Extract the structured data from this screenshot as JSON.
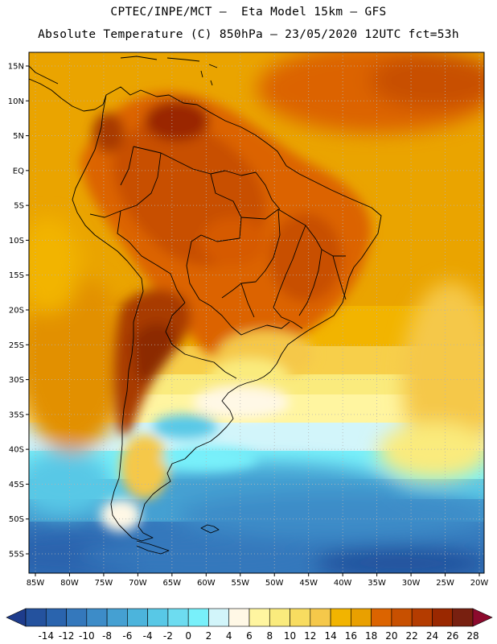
{
  "header": {
    "line1": "CPTEC/INPE/MCT –  Eta Model 15km – GFS",
    "line2": "Absolute Temperature (C) 850hPa – 23/05/2020 12UTC fct=53h"
  },
  "axes": {
    "lat_labels": [
      "15N",
      "10N",
      "5N",
      "EQ",
      "5S",
      "10S",
      "15S",
      "20S",
      "25S",
      "30S",
      "35S",
      "40S",
      "45S",
      "50S",
      "55S"
    ],
    "lon_labels": [
      "85W",
      "80W",
      "75W",
      "70W",
      "65W",
      "60W",
      "55W",
      "50W",
      "45W",
      "40W",
      "35W",
      "30W",
      "25W",
      "20W"
    ],
    "lat_values": [
      15,
      10,
      5,
      0,
      -5,
      -10,
      -15,
      -20,
      -25,
      -30,
      -35,
      -40,
      -45,
      -50,
      -55
    ],
    "lon_values": [
      -85,
      -80,
      -75,
      -70,
      -65,
      -60,
      -55,
      -50,
      -45,
      -40,
      -35,
      -30,
      -25,
      -20
    ]
  },
  "colorbar": {
    "labels": [
      "-14",
      "-12",
      "-10",
      "-8",
      "-6",
      "-4",
      "-2",
      "0",
      "2",
      "4",
      "6",
      "8",
      "10",
      "12",
      "14",
      "16",
      "18",
      "20",
      "22",
      "24",
      "26",
      "28"
    ],
    "colors": [
      "#1e3c8c",
      "#24529e",
      "#2a64ae",
      "#3478bc",
      "#3d8cc8",
      "#45a0d2",
      "#4cb4dc",
      "#58c8e6",
      "#6ddcf0",
      "#78f0fa",
      "#d2f5fa",
      "#fff8e6",
      "#fff5a0",
      "#faeb7d",
      "#f8dc60",
      "#f5c84a",
      "#f2b400",
      "#e9a000",
      "#dc6400",
      "#c85000",
      "#b43c00",
      "#9a2800",
      "#782010",
      "#8c0a2d"
    ]
  },
  "legend": {
    "left_arrow": "cold-end-arrow",
    "right_arrow": "warm-end-arrow"
  }
}
